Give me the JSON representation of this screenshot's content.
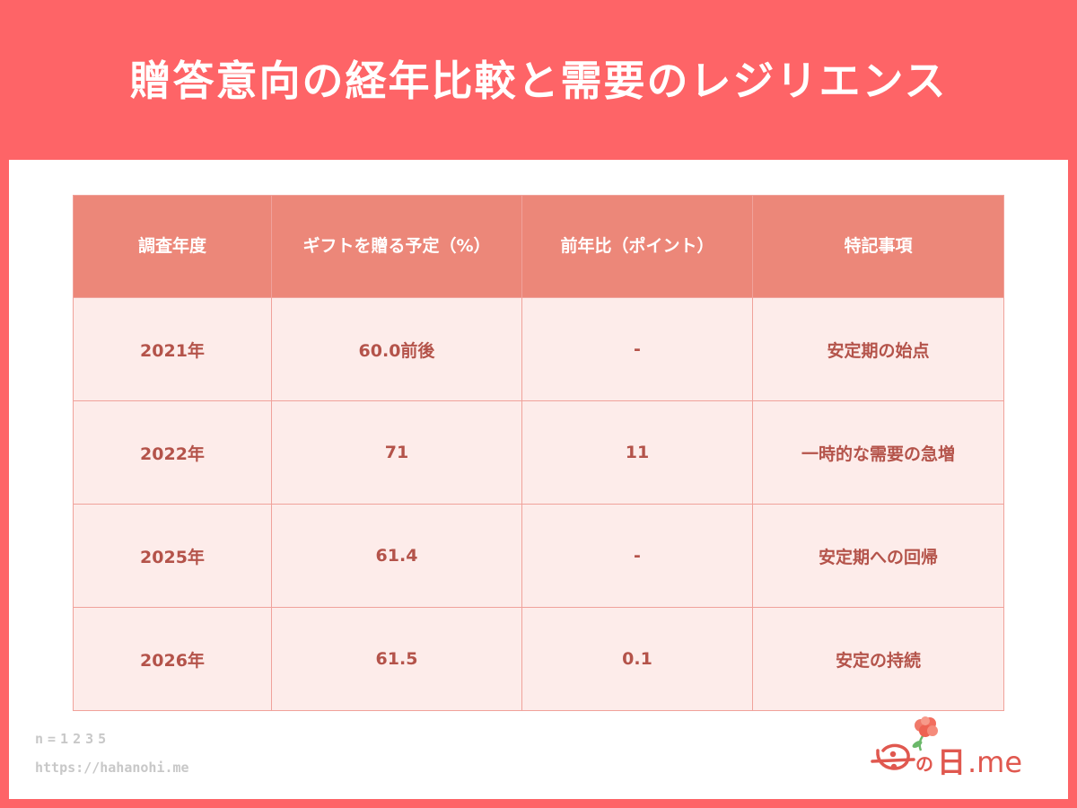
{
  "title": "贈答意向の経年比較と需要のレジリエンス",
  "table": {
    "headers": [
      "調査年度",
      "ギフトを贈る予定（%）",
      "前年比（ポイント）",
      "特記事項"
    ],
    "rows": [
      [
        "2021年",
        "60.0前後",
        "-",
        "安定期の始点"
      ],
      [
        "2022年",
        "71",
        "11",
        "一時的な需要の急増"
      ],
      [
        "2025年",
        "61.4",
        "-",
        "安定期への回帰"
      ],
      [
        "2026年",
        "61.5",
        "0.1",
        "安定の持続"
      ]
    ]
  },
  "footer": {
    "sample_size": "n=1235",
    "url": "https://hahanohi.me"
  },
  "logo": {
    "text_no": "の",
    "text_hi": "日",
    "text_me": ".me",
    "icon": "carnation-icon"
  },
  "colors": {
    "header_bg": "#fe6467",
    "table_header_bg": "#ec8779",
    "table_cell_bg": "#fdecea",
    "table_text": "#b4534a",
    "logo": "#e0584f"
  }
}
